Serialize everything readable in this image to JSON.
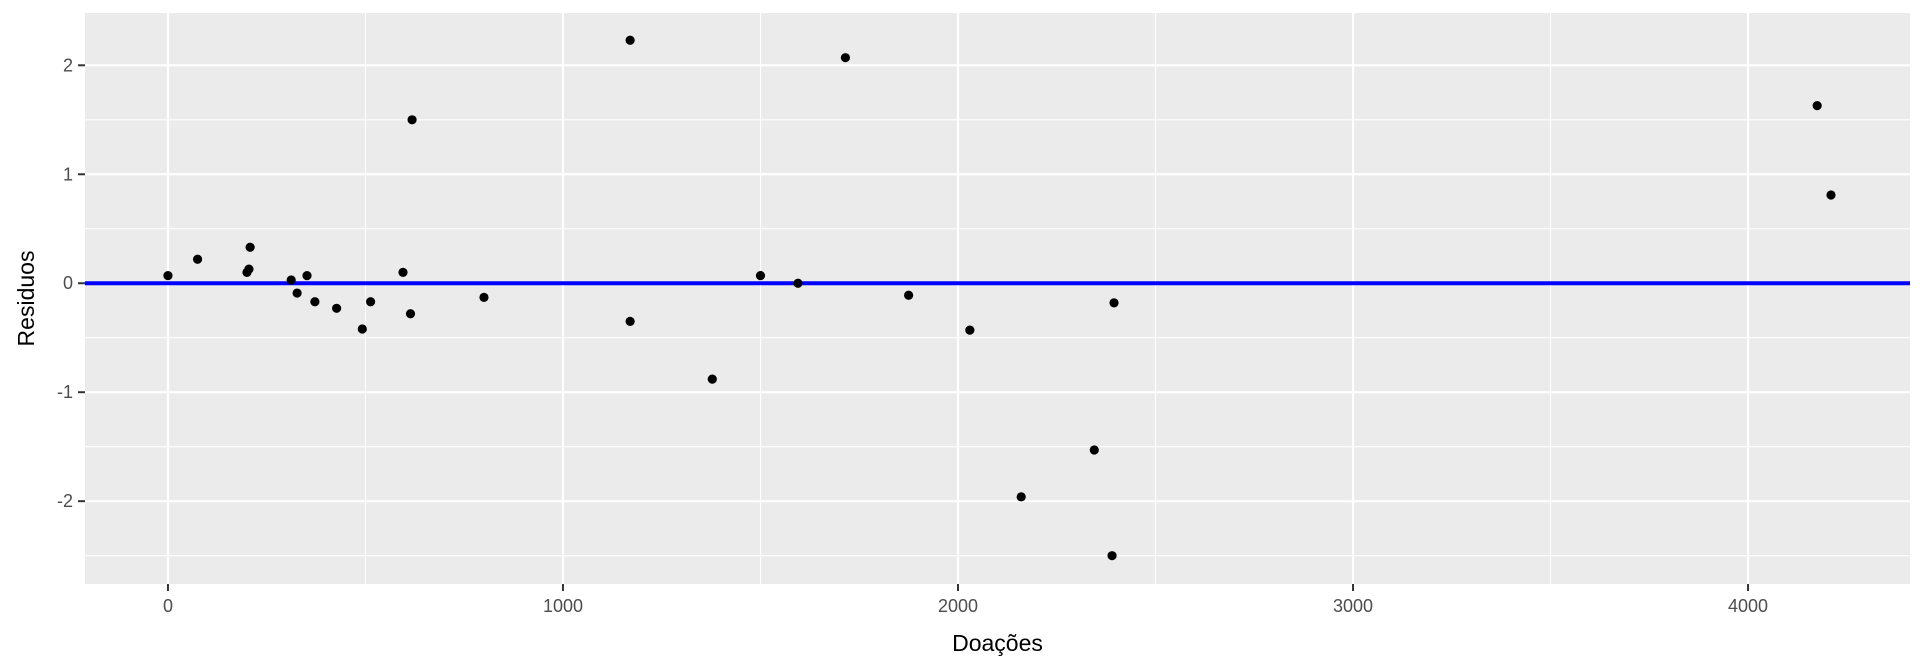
{
  "chart_data": {
    "type": "scatter",
    "title": "",
    "xlabel": "Doações",
    "ylabel": "Residuos",
    "xlim": [
      -210,
      4410
    ],
    "ylim": [
      -2.76,
      2.48
    ],
    "x_ticks": [
      0,
      1000,
      2000,
      3000,
      4000
    ],
    "x_tick_labels": [
      "0",
      "1000",
      "2000",
      "3000",
      "4000"
    ],
    "y_ticks": [
      -2,
      -1,
      0,
      1,
      2
    ],
    "y_tick_labels": [
      "-2",
      "-1",
      "0",
      "1",
      "2"
    ],
    "grid": true,
    "reference_line": {
      "y": 0,
      "color": "#0000ff"
    },
    "point_color": "#000000",
    "panel_color": "#ebebeb",
    "points": [
      {
        "x": 0,
        "y": 0.07
      },
      {
        "x": 75,
        "y": 0.22
      },
      {
        "x": 200,
        "y": 0.1
      },
      {
        "x": 205,
        "y": 0.13
      },
      {
        "x": 208,
        "y": 0.33
      },
      {
        "x": 312,
        "y": 0.03
      },
      {
        "x": 327,
        "y": -0.09
      },
      {
        "x": 352,
        "y": 0.07
      },
      {
        "x": 372,
        "y": -0.17
      },
      {
        "x": 427,
        "y": -0.23
      },
      {
        "x": 492,
        "y": -0.42
      },
      {
        "x": 513,
        "y": -0.17
      },
      {
        "x": 595,
        "y": 0.1
      },
      {
        "x": 614,
        "y": -0.28
      },
      {
        "x": 618,
        "y": 1.5
      },
      {
        "x": 800,
        "y": -0.13
      },
      {
        "x": 1170,
        "y": 2.23
      },
      {
        "x": 1170,
        "y": -0.35
      },
      {
        "x": 1378,
        "y": -0.88
      },
      {
        "x": 1500,
        "y": 0.07
      },
      {
        "x": 1595,
        "y": 0.0
      },
      {
        "x": 1715,
        "y": 2.07
      },
      {
        "x": 1875,
        "y": -0.11
      },
      {
        "x": 2030,
        "y": -0.43
      },
      {
        "x": 2160,
        "y": -1.96
      },
      {
        "x": 2345,
        "y": -1.53
      },
      {
        "x": 2390,
        "y": -2.5
      },
      {
        "x": 2395,
        "y": -0.18
      },
      {
        "x": 4175,
        "y": 1.63
      },
      {
        "x": 4210,
        "y": 0.81
      }
    ]
  }
}
